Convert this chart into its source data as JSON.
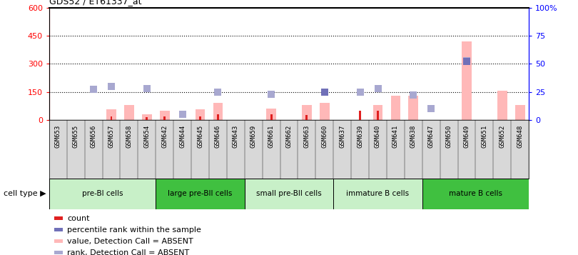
{
  "title": "GDS52 / ET61337_at",
  "samples": [
    "GSM653",
    "GSM655",
    "GSM656",
    "GSM657",
    "GSM658",
    "GSM654",
    "GSM642",
    "GSM644",
    "GSM645",
    "GSM646",
    "GSM643",
    "GSM659",
    "GSM661",
    "GSM662",
    "GSM663",
    "GSM660",
    "GSM637",
    "GSM639",
    "GSM640",
    "GSM641",
    "GSM638",
    "GSM647",
    "GSM650",
    "GSM649",
    "GSM651",
    "GSM652",
    "GSM648"
  ],
  "absent_value": [
    0,
    0,
    0,
    55,
    80,
    30,
    50,
    0,
    55,
    90,
    0,
    0,
    60,
    0,
    80,
    90,
    0,
    0,
    80,
    130,
    130,
    0,
    0,
    420,
    0,
    155,
    80
  ],
  "absent_rank_pct": [
    0,
    0,
    27,
    30,
    0,
    28,
    0,
    5,
    0,
    25,
    0,
    0,
    23,
    0,
    0,
    25,
    0,
    25,
    28,
    0,
    22,
    10,
    0,
    53,
    0,
    0,
    0
  ],
  "count_value": [
    0,
    0,
    0,
    20,
    0,
    15,
    20,
    0,
    20,
    30,
    0,
    0,
    30,
    0,
    25,
    0,
    0,
    50,
    50,
    0,
    0,
    0,
    0,
    0,
    0,
    0,
    0
  ],
  "pct_rank_value": [
    0,
    0,
    0,
    0,
    0,
    0,
    0,
    0,
    0,
    0,
    0,
    0,
    0,
    0,
    0,
    25,
    0,
    0,
    0,
    0,
    0,
    0,
    0,
    52,
    0,
    0,
    0
  ],
  "ylim_left": [
    0,
    600
  ],
  "ylim_right": [
    0,
    100
  ],
  "yticks_left": [
    0,
    150,
    300,
    450,
    600
  ],
  "yticks_right": [
    0,
    25,
    50,
    75,
    100
  ],
  "ytick_labels_left": [
    "0",
    "150",
    "300",
    "450",
    "600"
  ],
  "ytick_labels_right": [
    "0",
    "25",
    "50",
    "75",
    "100%"
  ],
  "cell_groups": [
    {
      "label": "pre-BI cells",
      "start": 0,
      "end": 5,
      "color": "#c8f0c8"
    },
    {
      "label": "large pre-BII cells",
      "start": 6,
      "end": 10,
      "color": "#40c040"
    },
    {
      "label": "small pre-BII cells",
      "start": 11,
      "end": 15,
      "color": "#c8f0c8"
    },
    {
      "label": "immature B cells",
      "start": 16,
      "end": 20,
      "color": "#c8f0c8"
    },
    {
      "label": "mature B cells",
      "start": 21,
      "end": 26,
      "color": "#40c040"
    }
  ],
  "bar_color_absent": "#ffb8b8",
  "bar_color_count": "#e02020",
  "dot_color_rank": "#7070b8",
  "dot_color_absent_rank": "#a8a8d0",
  "legend_items": [
    {
      "color": "#e02020",
      "label": "count"
    },
    {
      "color": "#7070b8",
      "label": "percentile rank within the sample"
    },
    {
      "color": "#ffb8b8",
      "label": "value, Detection Call = ABSENT"
    },
    {
      "color": "#a8a8d0",
      "label": "rank, Detection Call = ABSENT"
    }
  ],
  "cell_type_label": "cell type",
  "xtick_bg_color": "#d8d8d8",
  "plot_bg_color": "#ffffff"
}
